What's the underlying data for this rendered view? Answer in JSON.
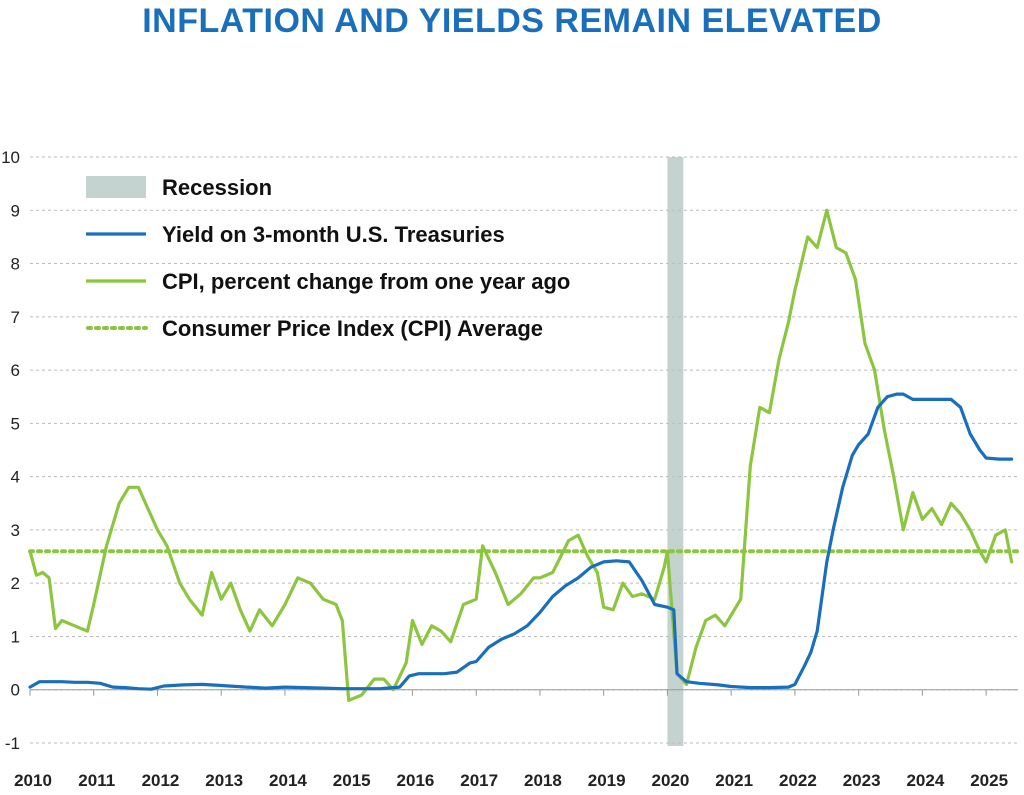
{
  "chart_data": {
    "type": "line",
    "title": "INFLATION AND YIELDS REMAIN ELEVATED",
    "xlabel": "",
    "ylabel": "",
    "xlim": [
      2010.0,
      2025.5
    ],
    "ylim": [
      -1,
      10
    ],
    "y_ticks": [
      "-1",
      "0",
      "1",
      "2",
      "3",
      "4",
      "5",
      "6",
      "7",
      "8",
      "9",
      "10"
    ],
    "x_ticks": [
      "2010",
      "2011",
      "2012",
      "2013",
      "2014",
      "2015",
      "2016",
      "2017",
      "2018",
      "2019",
      "2020",
      "2021",
      "2022",
      "2023",
      "2024",
      "2025"
    ],
    "grid": "horizontal dotted",
    "legend_position": "top-left",
    "colors": {
      "title": "#1a6fbd",
      "yield": "#1a6fbd",
      "cpi": "#8cc63f",
      "cpi_average": "#8cc63f",
      "recession": "#c5d3d0",
      "grid": "#bbbbbb"
    },
    "legend": [
      {
        "label": "Recession",
        "style": "box"
      },
      {
        "label": "Yield on 3-month U.S. Treasuries",
        "style": "line"
      },
      {
        "label": "CPI, percent change from one year ago",
        "style": "line"
      },
      {
        "label": "Consumer Price Index (CPI) Average",
        "style": "dotted"
      }
    ],
    "recession": {
      "start": 2020.0,
      "end": 2020.25
    },
    "cpi_average": 2.6,
    "series": [
      {
        "name": "Yield on 3-month U.S. Treasuries",
        "x": [
          2010.0,
          2010.15,
          2010.35,
          2010.5,
          2010.7,
          2010.9,
          2011.1,
          2011.3,
          2011.5,
          2011.7,
          2011.9,
          2012.1,
          2012.4,
          2012.7,
          2013.0,
          2013.4,
          2013.7,
          2014.0,
          2014.3,
          2014.6,
          2014.9,
          2015.2,
          2015.5,
          2015.8,
          2015.95,
          2016.1,
          2016.3,
          2016.5,
          2016.7,
          2016.9,
          2017.0,
          2017.2,
          2017.4,
          2017.6,
          2017.8,
          2018.0,
          2018.2,
          2018.4,
          2018.6,
          2018.8,
          2019.0,
          2019.2,
          2019.4,
          2019.6,
          2019.8,
          2020.0,
          2020.1,
          2020.15,
          2020.3,
          2020.5,
          2020.8,
          2021.0,
          2021.3,
          2021.6,
          2021.9,
          2022.0,
          2022.15,
          2022.25,
          2022.35,
          2022.5,
          2022.6,
          2022.75,
          2022.9,
          2023.0,
          2023.15,
          2023.3,
          2023.45,
          2023.6,
          2023.7,
          2023.85,
          2024.0,
          2024.15,
          2024.3,
          2024.45,
          2024.6,
          2024.75,
          2024.9,
          2025.0,
          2025.2,
          2025.4
        ],
        "y": [
          0.05,
          0.15,
          0.15,
          0.15,
          0.14,
          0.14,
          0.12,
          0.05,
          0.04,
          0.02,
          0.01,
          0.07,
          0.09,
          0.1,
          0.08,
          0.05,
          0.03,
          0.05,
          0.04,
          0.03,
          0.02,
          0.02,
          0.02,
          0.05,
          0.26,
          0.3,
          0.3,
          0.3,
          0.33,
          0.5,
          0.53,
          0.8,
          0.95,
          1.05,
          1.2,
          1.45,
          1.75,
          1.95,
          2.1,
          2.3,
          2.4,
          2.42,
          2.4,
          2.05,
          1.6,
          1.55,
          1.5,
          0.3,
          0.15,
          0.12,
          0.09,
          0.06,
          0.04,
          0.04,
          0.05,
          0.1,
          0.45,
          0.7,
          1.1,
          2.4,
          3.0,
          3.8,
          4.4,
          4.6,
          4.8,
          5.3,
          5.5,
          5.55,
          5.55,
          5.45,
          5.45,
          5.45,
          5.45,
          5.45,
          5.3,
          4.8,
          4.5,
          4.35,
          4.33,
          4.33
        ]
      },
      {
        "name": "CPI, percent change from one year ago",
        "x": [
          2010.0,
          2010.1,
          2010.2,
          2010.3,
          2010.4,
          2010.5,
          2010.7,
          2010.9,
          2011.0,
          2011.2,
          2011.4,
          2011.55,
          2011.7,
          2011.85,
          2012.0,
          2012.15,
          2012.35,
          2012.5,
          2012.7,
          2012.85,
          2013.0,
          2013.15,
          2013.3,
          2013.45,
          2013.6,
          2013.8,
          2014.0,
          2014.2,
          2014.4,
          2014.6,
          2014.8,
          2014.9,
          2015.0,
          2015.2,
          2015.4,
          2015.55,
          2015.7,
          2015.9,
          2016.0,
          2016.15,
          2016.3,
          2016.45,
          2016.6,
          2016.8,
          2017.0,
          2017.1,
          2017.3,
          2017.5,
          2017.7,
          2017.9,
          2018.0,
          2018.2,
          2018.45,
          2018.6,
          2018.75,
          2018.9,
          2019.0,
          2019.15,
          2019.3,
          2019.45,
          2019.6,
          2019.8,
          2019.95,
          2020.0,
          2020.15,
          2020.3,
          2020.45,
          2020.6,
          2020.75,
          2020.9,
          2021.0,
          2021.15,
          2021.3,
          2021.45,
          2021.6,
          2021.75,
          2021.9,
          2022.0,
          2022.2,
          2022.35,
          2022.5,
          2022.65,
          2022.8,
          2022.95,
          2023.1,
          2023.25,
          2023.4,
          2023.55,
          2023.7,
          2023.85,
          2024.0,
          2024.15,
          2024.3,
          2024.45,
          2024.6,
          2024.75,
          2024.9,
          2025.0,
          2025.15,
          2025.3,
          2025.4
        ],
        "y": [
          2.6,
          2.15,
          2.2,
          2.1,
          1.15,
          1.3,
          1.2,
          1.1,
          1.6,
          2.7,
          3.5,
          3.8,
          3.8,
          3.4,
          3.0,
          2.7,
          2.0,
          1.7,
          1.4,
          2.2,
          1.7,
          2.0,
          1.5,
          1.1,
          1.5,
          1.2,
          1.6,
          2.1,
          2.0,
          1.7,
          1.6,
          1.3,
          -0.2,
          -0.1,
          0.2,
          0.2,
          0.0,
          0.5,
          1.3,
          0.85,
          1.2,
          1.1,
          0.9,
          1.6,
          1.7,
          2.7,
          2.2,
          1.6,
          1.8,
          2.1,
          2.1,
          2.2,
          2.8,
          2.9,
          2.5,
          2.2,
          1.55,
          1.5,
          2.0,
          1.75,
          1.8,
          1.7,
          2.3,
          2.6,
          0.3,
          0.1,
          0.8,
          1.3,
          1.4,
          1.2,
          1.4,
          1.7,
          4.2,
          5.3,
          5.2,
          6.2,
          6.9,
          7.5,
          8.5,
          8.3,
          9.0,
          8.3,
          8.2,
          7.7,
          6.5,
          6.0,
          4.9,
          4.0,
          3.0,
          3.7,
          3.2,
          3.4,
          3.1,
          3.5,
          3.3,
          3.0,
          2.6,
          2.4,
          2.9,
          3.0,
          2.4
        ]
      }
    ]
  }
}
